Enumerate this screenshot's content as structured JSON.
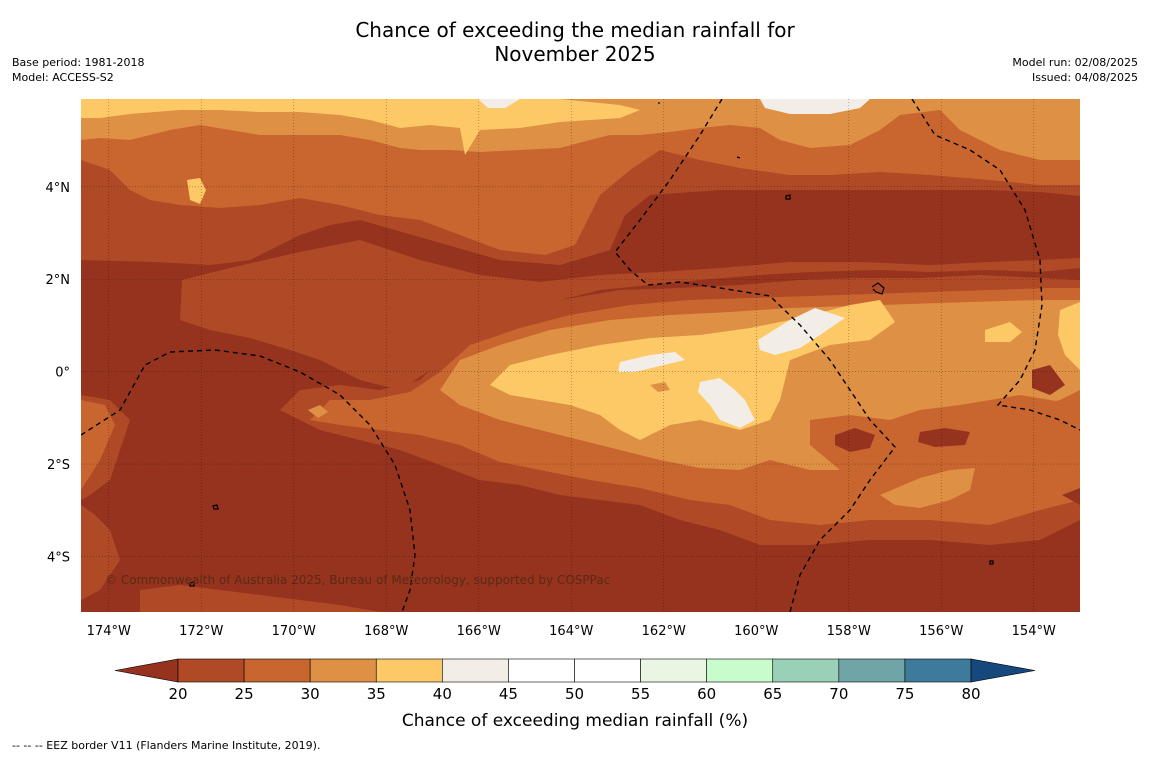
{
  "title_line1": "Chance of exceeding the median rainfall for",
  "title_line2": "November 2025",
  "meta_left": {
    "base_period": "Base period: 1981-2018",
    "model": "Model: ACCESS-S2"
  },
  "meta_right": {
    "model_run": "Model run: 02/08/2025",
    "issued": "Issued: 04/08/2025"
  },
  "copyright": "© Commonwealth of Australia 2025, Bureau of Meteorology, supported by COSPPac",
  "footnote": "--  --  -- EEZ border V11 (Flanders Marine Institute, 2019).",
  "map": {
    "lon_range": [
      -174.6,
      -153.0
    ],
    "lat_range": [
      -5.2,
      5.9
    ],
    "x_ticks": [
      {
        "lon": -174,
        "label": "174°W"
      },
      {
        "lon": -172,
        "label": "172°W"
      },
      {
        "lon": -170,
        "label": "170°W"
      },
      {
        "lon": -168,
        "label": "168°W"
      },
      {
        "lon": -166,
        "label": "166°W"
      },
      {
        "lon": -164,
        "label": "164°W"
      },
      {
        "lon": -162,
        "label": "162°W"
      },
      {
        "lon": -160,
        "label": "160°W"
      },
      {
        "lon": -158,
        "label": "158°W"
      },
      {
        "lon": -156,
        "label": "156°W"
      },
      {
        "lon": -154,
        "label": "154°W"
      }
    ],
    "y_ticks": [
      {
        "lat": 4,
        "label": "4°N"
      },
      {
        "lat": 2,
        "label": "2°N"
      },
      {
        "lat": 0,
        "label": "0°"
      },
      {
        "lat": -2,
        "label": "2°S"
      },
      {
        "lat": -4,
        "label": "4°S"
      }
    ]
  },
  "colorbar": {
    "title": "Chance of exceeding median rainfall (%)",
    "labels": [
      "20",
      "25",
      "30",
      "35",
      "40",
      "45",
      "50",
      "55",
      "60",
      "65",
      "70",
      "75",
      "80"
    ],
    "colors": [
      "#b04a26",
      "#c9652f",
      "#de9044",
      "#fdc866",
      "#f2ede6",
      "#ffffff",
      "#ffffff",
      "#eaf6e4",
      "#c8fccc",
      "#9bd0b8",
      "#6fa5a6",
      "#3d7a9c"
    ],
    "under_color": "#95331f",
    "over_color": "#15487d"
  },
  "colors": {
    "lt20": "#95331f",
    "c20_25": "#b04a26",
    "c25_30": "#c9652f",
    "c30_35": "#de9044",
    "c35_40": "#fdc866",
    "c40_45": "#f2ede6"
  }
}
